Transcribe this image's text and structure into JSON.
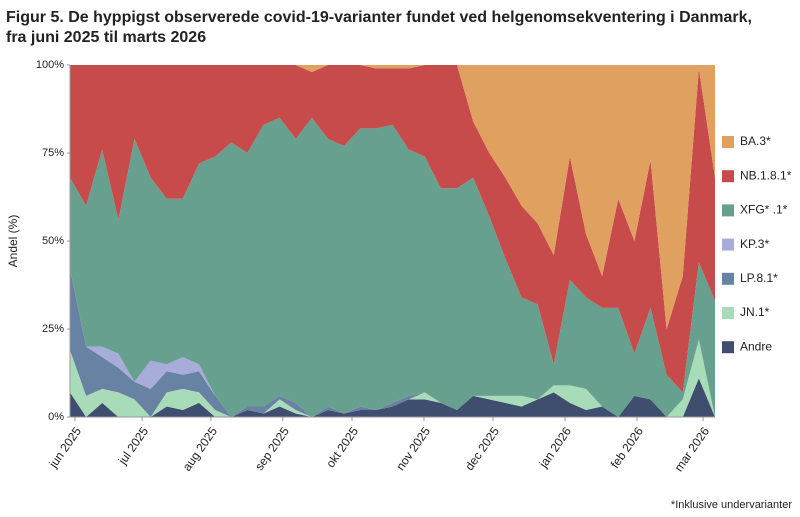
{
  "chart_data": {
    "type": "stacked_area",
    "title": [
      "Figur 5. De hyppigst observerede covid-19-varianter fundet ved helgenomsekventering i Danmark,",
      "fra juni 2025 til marts 2026"
    ],
    "ylabel": "Andel (%)",
    "footnote": "*Inklusive undervarianter",
    "categories": [
      null,
      null,
      null,
      null,
      null,
      null,
      null,
      null,
      null,
      null,
      null,
      null,
      null,
      null,
      null,
      null,
      null,
      null,
      null,
      null,
      null,
      null,
      null,
      null,
      null,
      null,
      null,
      null,
      null,
      null,
      null,
      null,
      null,
      null,
      null,
      null,
      null,
      null,
      null,
      null,
      null
    ],
    "xticks": [
      {
        "value": 0.31,
        "label": "jun 2025"
      },
      {
        "value": 4.47,
        "label": "jul 2025"
      },
      {
        "value": 8.74,
        "label": "aug 2025"
      },
      {
        "value": 13.2,
        "label": "sep 2025"
      },
      {
        "value": 17.49,
        "label": "okt 2025"
      },
      {
        "value": 21.95,
        "label": "nov 2025"
      },
      {
        "value": 26.23,
        "label": "dec 2025"
      },
      {
        "value": 30.7,
        "label": "jan 2026"
      },
      {
        "value": 35.16,
        "label": "feb 2026"
      },
      {
        "value": 39.26,
        "label": "mar 2026"
      }
    ],
    "ylim": [
      0,
      100
    ],
    "yticks": [
      {
        "value": 0,
        "label": "0%"
      },
      {
        "value": 25,
        "label": "25%"
      },
      {
        "value": 50,
        "label": "50%"
      },
      {
        "value": 75,
        "label": "75%"
      },
      {
        "value": 100,
        "label": "100%"
      }
    ],
    "legend": "right",
    "series": [
      {
        "name": "Andre",
        "color": "#3f4e6e",
        "values": [
          7,
          0,
          4,
          0,
          0,
          0,
          3,
          2,
          4,
          0,
          0,
          2,
          1,
          3,
          1,
          0,
          2,
          1,
          2,
          2,
          3,
          5,
          5,
          4,
          2,
          6,
          5,
          4,
          3,
          5,
          7,
          4,
          2,
          3,
          0,
          6,
          5,
          0,
          0,
          11,
          0
        ]
      },
      {
        "name": "JN.1*",
        "color": "#a8dcb9",
        "values": [
          12,
          6,
          4,
          7,
          5,
          0,
          4,
          6,
          3,
          2,
          0,
          0,
          0,
          2,
          1,
          0,
          0,
          0,
          0,
          0,
          0,
          0,
          2,
          0,
          0,
          0,
          1,
          2,
          3,
          0,
          2,
          5,
          6,
          0,
          0,
          0,
          0,
          0,
          5,
          11,
          0
        ]
      },
      {
        "name": "LP.8.1*",
        "color": "#6882a3",
        "values": [
          23,
          14,
          9,
          7,
          5,
          8,
          6,
          4,
          6,
          4,
          0,
          1,
          2,
          1,
          2,
          0,
          1,
          0,
          1,
          0,
          1,
          1,
          0,
          0,
          0,
          0,
          0,
          0,
          0,
          0,
          0,
          0,
          0,
          0,
          0,
          0,
          0,
          0,
          0,
          0,
          0
        ]
      },
      {
        "name": "KP.3*",
        "color": "#a8acd8",
        "values": [
          0,
          0,
          3,
          4,
          0,
          8,
          2,
          5,
          2,
          0,
          0,
          0,
          0,
          0,
          0,
          0,
          0,
          0,
          0,
          0,
          0,
          0,
          0,
          0,
          0,
          0,
          0,
          0,
          0,
          0,
          0,
          0,
          0,
          0,
          0,
          0,
          0,
          0,
          0,
          0,
          0
        ]
      },
      {
        "name": "XFG* .1*",
        "color": "#67a08e",
        "values": [
          26,
          40,
          56,
          38,
          69,
          52,
          47,
          45,
          57,
          68,
          78,
          72,
          80,
          79,
          75,
          85,
          76,
          76,
          79,
          80,
          79,
          70,
          67,
          61,
          63,
          62,
          51,
          39,
          28,
          27,
          6,
          30,
          26,
          28,
          31,
          12,
          26,
          12,
          2,
          22,
          33
        ]
      },
      {
        "name": "NB.1.8.1*",
        "color": "#c84b4b",
        "values": [
          32,
          40,
          24,
          44,
          21,
          32,
          38,
          38,
          28,
          26,
          22,
          25,
          17,
          15,
          21,
          13,
          21,
          23,
          18,
          17,
          16,
          23,
          26,
          35,
          35,
          16,
          18,
          23,
          26,
          23,
          31,
          35,
          18,
          9,
          31,
          32,
          42,
          13,
          33,
          55,
          35
        ]
      },
      {
        "name": "BA.3*",
        "color": "#e0a060",
        "values": [
          0,
          0,
          0,
          0,
          0,
          0,
          0,
          0,
          0,
          0,
          0,
          0,
          0,
          0,
          0,
          2,
          0,
          0,
          0,
          1,
          1,
          1,
          0,
          0,
          0,
          16,
          25,
          32,
          40,
          45,
          54,
          26,
          48,
          60,
          38,
          50,
          27,
          75,
          60,
          1,
          32
        ]
      }
    ]
  }
}
